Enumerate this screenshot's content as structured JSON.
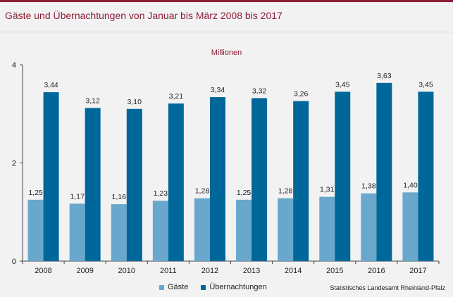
{
  "header": {
    "title": "Gäste und Übernachtungen von Januar bis März 2008 bis 2017"
  },
  "source": "Statistisches Landesamt Rheinland-Pfalz",
  "colors": {
    "accent": "#8c1d35",
    "gaeste": "#69a8cc",
    "uebernachtungen": "#00679a"
  },
  "chart_data": {
    "type": "bar",
    "subtitle": "Millionen",
    "categories": [
      "2008",
      "2009",
      "2010",
      "2011",
      "2012",
      "2013",
      "2014",
      "2015",
      "2016",
      "2017"
    ],
    "series": [
      {
        "name": "Gäste",
        "values": [
          1.25,
          1.17,
          1.16,
          1.23,
          1.28,
          1.25,
          1.28,
          1.31,
          1.38,
          1.4
        ],
        "labels": [
          "1,25",
          "1,17",
          "1,16",
          "1,23",
          "1,28",
          "1,25",
          "1,28",
          "1,31",
          "1,38",
          "1,40"
        ]
      },
      {
        "name": "Übernachtungen",
        "values": [
          3.44,
          3.12,
          3.1,
          3.21,
          3.34,
          3.32,
          3.26,
          3.45,
          3.63,
          3.45
        ],
        "labels": [
          "3,44",
          "3,12",
          "3,10",
          "3,21",
          "3,34",
          "3,32",
          "3,26",
          "3,45",
          "3,63",
          "3,45"
        ]
      }
    ],
    "yticks": [
      "0",
      "2",
      "4"
    ],
    "ylim": [
      0,
      4
    ],
    "grid": false,
    "legend": "bottom-center"
  }
}
